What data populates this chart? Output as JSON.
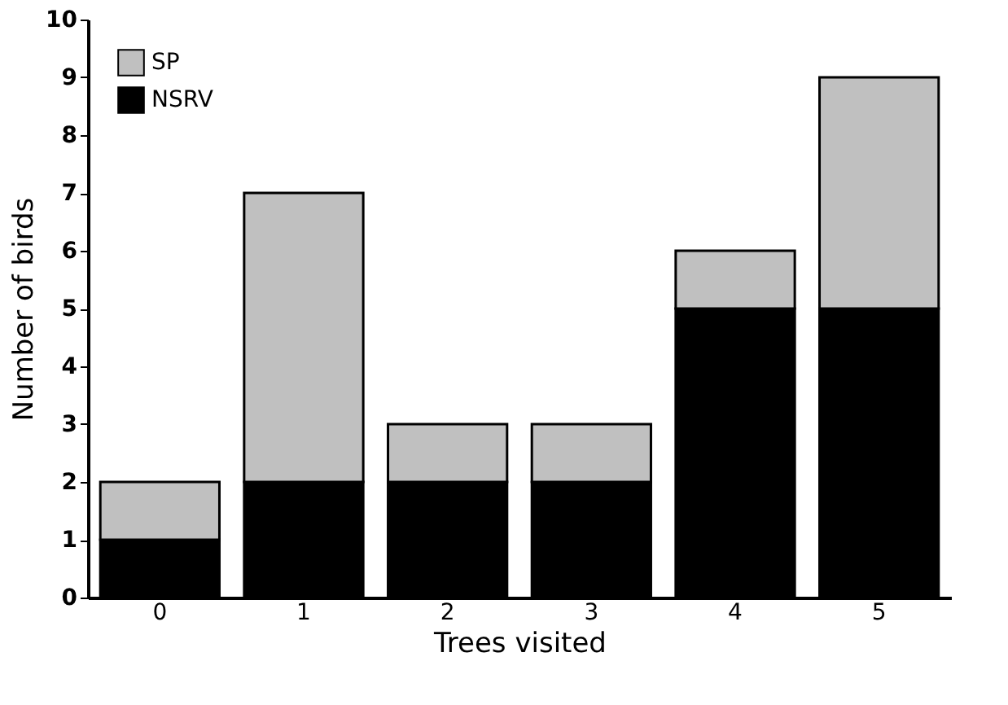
{
  "chart_data": {
    "type": "bar",
    "stacked": true,
    "xlabel": "Trees visited",
    "ylabel": "Number of birds",
    "categories": [
      "0",
      "1",
      "2",
      "3",
      "4",
      "5"
    ],
    "series": [
      {
        "name": "NSRV",
        "color": "#000000",
        "values": [
          1,
          2,
          2,
          2,
          5,
          5
        ]
      },
      {
        "name": "SP",
        "color": "#c0c0c0",
        "values": [
          1,
          5,
          1,
          1,
          1,
          4
        ]
      }
    ],
    "ylim": [
      0,
      10
    ],
    "yticks": [
      0,
      1,
      2,
      3,
      4,
      5,
      6,
      7,
      8,
      9,
      10
    ],
    "grid": false,
    "legend": "top left"
  }
}
